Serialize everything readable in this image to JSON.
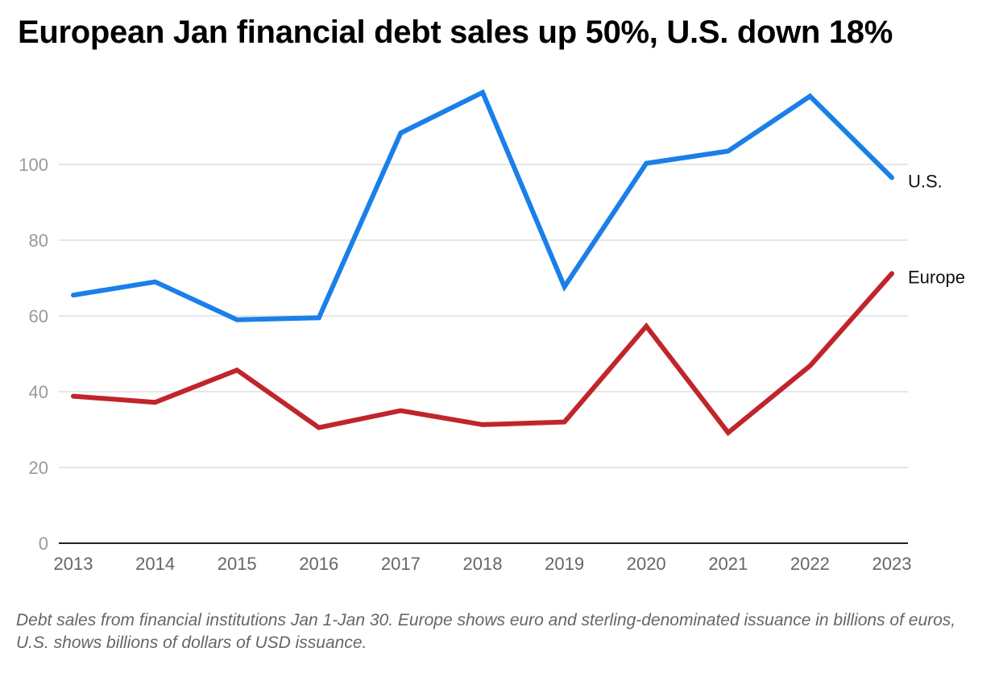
{
  "chart_data": {
    "type": "line",
    "title": "European Jan financial debt sales up 50%, U.S. down 18%",
    "note": "Debt sales from financial institutions Jan 1-Jan 30. Europe shows euro and sterling-denominated issuance in billions of euros, U.S. shows billions of dollars of USD issuance.",
    "x": [
      "2013",
      "2014",
      "2015",
      "2016",
      "2017",
      "2018",
      "2019",
      "2020",
      "2021",
      "2022",
      "2023"
    ],
    "yticks": [
      0,
      20,
      40,
      60,
      80,
      100
    ],
    "ylim": [
      0,
      120
    ],
    "grid": true,
    "legend": "direct labels at line ends",
    "series": [
      {
        "name": "U.S.",
        "color": "#1a7fe8",
        "values": [
          65.5,
          69,
          59,
          59.5,
          108.3,
          119,
          67.7,
          100.3,
          103.5,
          118,
          96.5
        ]
      },
      {
        "name": "Europe",
        "color": "#c0252b",
        "values": [
          38.8,
          37.2,
          45.7,
          30.5,
          35,
          31.3,
          32,
          57.3,
          29.2,
          46.8,
          71.2
        ]
      }
    ]
  }
}
